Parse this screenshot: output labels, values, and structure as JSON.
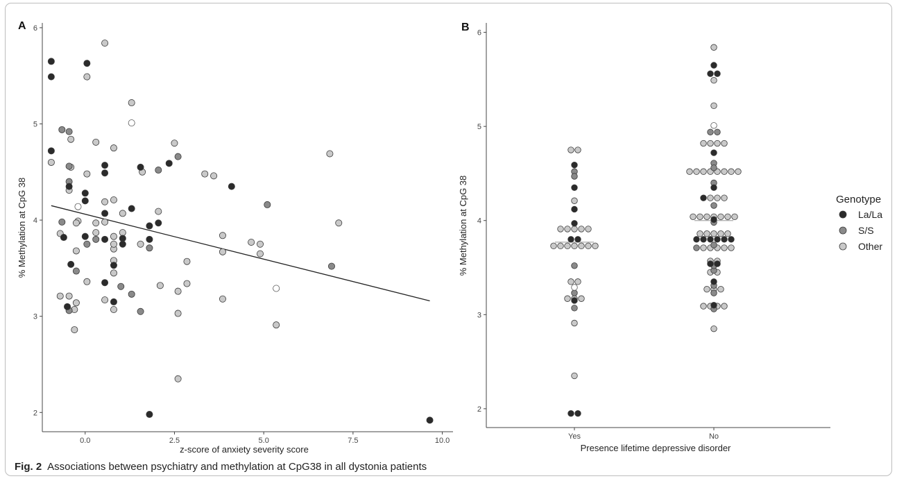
{
  "caption": {
    "label": "Fig. 2",
    "text": "Associations between psychiatry and methylation at CpG38 in all dystonia patients"
  },
  "colors": {
    "La/La": "#2b2b2b",
    "S/S": "#8a8a8a",
    "Other": "#c9c9c9",
    "regression_line": "#222222",
    "median_line": "#aaaaaa"
  },
  "legend": {
    "title": "Genotype",
    "items": [
      "La/La",
      "S/S",
      "Other"
    ]
  },
  "chart_data": [
    {
      "panel": "A",
      "type": "scatter",
      "xlabel": "z-score of anxiety severity score",
      "ylabel": "% Methylation at CpG 38",
      "xlim": [
        -1.2,
        10.3
      ],
      "ylim": [
        1.8,
        6.05
      ],
      "xticks": [
        "0.0",
        "2.5",
        "5.0",
        "7.5",
        "10.0"
      ],
      "xtick_values": [
        0,
        2.5,
        5,
        7.5,
        10
      ],
      "yticks": [
        "2",
        "3",
        "4",
        "5",
        "6"
      ],
      "ytick_values": [
        2,
        3,
        4,
        5,
        6
      ],
      "regression_line": {
        "x": [
          -0.95,
          9.65
        ],
        "y": [
          4.15,
          3.16
        ]
      },
      "series": [
        {
          "name": "La/La",
          "points": [
            [
              -0.95,
              5.65
            ],
            [
              -0.95,
              5.49
            ],
            [
              -0.95,
              4.72
            ],
            [
              0.05,
              5.63
            ],
            [
              -0.45,
              4.35
            ],
            [
              0,
              4.28
            ],
            [
              0,
              4.2
            ],
            [
              -0.6,
              3.82
            ],
            [
              0,
              3.83
            ],
            [
              0.55,
              4.57
            ],
            [
              0.55,
              4.49
            ],
            [
              0.55,
              4.07
            ],
            [
              0.55,
              3.8
            ],
            [
              0.55,
              3.35
            ],
            [
              -0.4,
              3.54
            ],
            [
              -0.5,
              3.1
            ],
            [
              0.8,
              3.53
            ],
            [
              0.8,
              3.15
            ],
            [
              1.05,
              3.81
            ],
            [
              1.05,
              3.75
            ],
            [
              1.3,
              4.12
            ],
            [
              1.55,
              4.55
            ],
            [
              1.8,
              3.94
            ],
            [
              1.8,
              3.8
            ],
            [
              2.05,
              3.97
            ],
            [
              2.35,
              4.59
            ],
            [
              4.1,
              4.35
            ],
            [
              1.8,
              1.98
            ],
            [
              9.65,
              1.92
            ]
          ]
        },
        {
          "name": "S/S",
          "points": [
            [
              -0.65,
              4.94
            ],
            [
              -0.45,
              4.92
            ],
            [
              -0.45,
              4.56
            ],
            [
              -0.45,
              4.4
            ],
            [
              -0.65,
              3.98
            ],
            [
              -0.25,
              3.47
            ],
            [
              -0.45,
              3.06
            ],
            [
              0.05,
              3.75
            ],
            [
              0.3,
              3.8
            ],
            [
              1.0,
              3.31
            ],
            [
              1.3,
              3.23
            ],
            [
              1.55,
              3.05
            ],
            [
              1.8,
              3.71
            ],
            [
              2.05,
              4.52
            ],
            [
              2.6,
              4.66
            ],
            [
              5.1,
              4.16
            ],
            [
              6.9,
              3.52
            ]
          ]
        },
        {
          "name": "Other",
          "points": [
            [
              0.55,
              5.84
            ],
            [
              0.05,
              5.49
            ],
            [
              1.3,
              5.22
            ],
            [
              -0.95,
              4.6
            ],
            [
              -0.4,
              4.84
            ],
            [
              -0.45,
              4.31
            ],
            [
              0.3,
              4.81
            ],
            [
              0.8,
              4.75
            ],
            [
              0.05,
              4.48
            ],
            [
              -0.4,
              4.55
            ],
            [
              0.55,
              4.19
            ],
            [
              0.8,
              4.21
            ],
            [
              1.05,
              4.07
            ],
            [
              2.05,
              4.09
            ],
            [
              2.5,
              4.8
            ],
            [
              1.6,
              4.5
            ],
            [
              3.35,
              4.48
            ],
            [
              3.6,
              4.46
            ],
            [
              6.85,
              4.69
            ],
            [
              0.3,
              3.97
            ],
            [
              -0.2,
              3.99
            ],
            [
              -0.25,
              3.97
            ],
            [
              0.3,
              3.87
            ],
            [
              0.55,
              3.98
            ],
            [
              0.8,
              3.83
            ],
            [
              0.8,
              3.7
            ],
            [
              0.8,
              3.75
            ],
            [
              0.8,
              3.58
            ],
            [
              0.8,
              3.45
            ],
            [
              1.05,
              3.87
            ],
            [
              -0.7,
              3.86
            ],
            [
              -0.25,
              3.68
            ],
            [
              0.05,
              3.36
            ],
            [
              -0.7,
              3.21
            ],
            [
              -0.45,
              3.21
            ],
            [
              -0.25,
              3.14
            ],
            [
              -0.3,
              3.07
            ],
            [
              -0.3,
              2.86
            ],
            [
              0.55,
              3.17
            ],
            [
              0.8,
              3.07
            ],
            [
              1.55,
              3.75
            ],
            [
              2.1,
              3.32
            ],
            [
              2.6,
              3.26
            ],
            [
              2.6,
              3.03
            ],
            [
              2.85,
              3.57
            ],
            [
              2.85,
              3.34
            ],
            [
              3.85,
              3.84
            ],
            [
              3.85,
              3.67
            ],
            [
              3.85,
              3.18
            ],
            [
              4.65,
              3.77
            ],
            [
              4.9,
              3.75
            ],
            [
              4.9,
              3.65
            ],
            [
              5.35,
              2.91
            ],
            [
              7.1,
              3.97
            ],
            [
              2.6,
              2.35
            ]
          ]
        },
        {
          "name": "",
          "open": true,
          "points": [
            [
              1.3,
              5.01
            ],
            [
              -0.2,
              4.14
            ],
            [
              5.35,
              3.29
            ]
          ]
        }
      ]
    },
    {
      "panel": "B",
      "type": "scatter",
      "xlabel": "Presence lifetime depressive disorder",
      "ylabel": "% Methylation at CpG 38",
      "categories": [
        "Yes",
        "No"
      ],
      "ylim": [
        1.8,
        6.1
      ],
      "yticks": [
        "2",
        "3",
        "4",
        "5",
        "6"
      ],
      "ytick_values": [
        2,
        3,
        4,
        5,
        6
      ],
      "medians": [
        3.77,
        4.0
      ],
      "series": [
        {
          "name": "La/La",
          "points": [
            [
              "Yes",
              4.59
            ],
            [
              "Yes",
              4.35
            ],
            [
              "Yes",
              4.12
            ],
            [
              "Yes",
              3.97
            ],
            [
              "Yes",
              3.8
            ],
            [
              "Yes",
              3.8
            ],
            [
              "Yes",
              3.15
            ],
            [
              "Yes",
              1.95
            ],
            [
              "Yes",
              1.95
            ],
            [
              "No",
              5.65
            ],
            [
              "No",
              5.56
            ],
            [
              "No",
              5.56
            ],
            [
              "No",
              4.72
            ],
            [
              "No",
              4.35
            ],
            [
              "No",
              4.24
            ],
            [
              "No",
              4.01
            ],
            [
              "No",
              3.8
            ],
            [
              "No",
              3.8
            ],
            [
              "No",
              3.8
            ],
            [
              "No",
              3.8
            ],
            [
              "No",
              3.8
            ],
            [
              "No",
              3.8
            ],
            [
              "No",
              3.54
            ],
            [
              "No",
              3.54
            ],
            [
              "No",
              3.35
            ],
            [
              "No",
              3.1
            ]
          ]
        },
        {
          "name": "S/S",
          "points": [
            [
              "Yes",
              4.52
            ],
            [
              "Yes",
              4.47
            ],
            [
              "Yes",
              3.52
            ],
            [
              "Yes",
              3.23
            ],
            [
              "Yes",
              3.07
            ],
            [
              "No",
              4.94
            ],
            [
              "No",
              4.94
            ],
            [
              "No",
              4.61
            ],
            [
              "No",
              4.56
            ],
            [
              "No",
              4.4
            ],
            [
              "No",
              3.98
            ],
            [
              "No",
              3.74
            ],
            [
              "No",
              3.71
            ],
            [
              "No",
              3.47
            ],
            [
              "No",
              3.31
            ],
            [
              "No",
              3.23
            ],
            [
              "No",
              3.06
            ],
            [
              "No",
              4.16
            ],
            [
              "No",
              3.52
            ]
          ]
        },
        {
          "name": "Other",
          "points": [
            [
              "Yes",
              4.75
            ],
            [
              "Yes",
              4.75
            ],
            [
              "Yes",
              4.21
            ],
            [
              "Yes",
              3.91
            ],
            [
              "Yes",
              3.91
            ],
            [
              "Yes",
              3.91
            ],
            [
              "Yes",
              3.91
            ],
            [
              "Yes",
              3.91
            ],
            [
              "Yes",
              3.73
            ],
            [
              "Yes",
              3.73
            ],
            [
              "Yes",
              3.73
            ],
            [
              "Yes",
              3.73
            ],
            [
              "Yes",
              3.73
            ],
            [
              "Yes",
              3.73
            ],
            [
              "Yes",
              3.73
            ],
            [
              "Yes",
              3.35
            ],
            [
              "Yes",
              3.35
            ],
            [
              "Yes",
              3.17
            ],
            [
              "Yes",
              3.17
            ],
            [
              "Yes",
              3.17
            ],
            [
              "Yes",
              2.91
            ],
            [
              "Yes",
              2.35
            ],
            [
              "No",
              5.84
            ],
            [
              "No",
              5.49
            ],
            [
              "No",
              5.22
            ],
            [
              "No",
              4.82
            ],
            [
              "No",
              4.82
            ],
            [
              "No",
              4.82
            ],
            [
              "No",
              4.82
            ],
            [
              "No",
              4.52
            ],
            [
              "No",
              4.52
            ],
            [
              "No",
              4.52
            ],
            [
              "No",
              4.52
            ],
            [
              "No",
              4.52
            ],
            [
              "No",
              4.52
            ],
            [
              "No",
              4.52
            ],
            [
              "No",
              4.52
            ],
            [
              "No",
              4.24
            ],
            [
              "No",
              4.24
            ],
            [
              "No",
              4.24
            ],
            [
              "No",
              4.04
            ],
            [
              "No",
              4.04
            ],
            [
              "No",
              4.04
            ],
            [
              "No",
              4.04
            ],
            [
              "No",
              4.04
            ],
            [
              "No",
              4.04
            ],
            [
              "No",
              4.04
            ],
            [
              "No",
              3.86
            ],
            [
              "No",
              3.86
            ],
            [
              "No",
              3.86
            ],
            [
              "No",
              3.86
            ],
            [
              "No",
              3.86
            ],
            [
              "No",
              3.71
            ],
            [
              "No",
              3.71
            ],
            [
              "No",
              3.71
            ],
            [
              "No",
              3.71
            ],
            [
              "No",
              3.71
            ],
            [
              "No",
              3.57
            ],
            [
              "No",
              3.57
            ],
            [
              "No",
              3.45
            ],
            [
              "No",
              3.45
            ],
            [
              "No",
              3.27
            ],
            [
              "No",
              3.27
            ],
            [
              "No",
              3.27
            ],
            [
              "No",
              3.09
            ],
            [
              "No",
              3.09
            ],
            [
              "No",
              3.09
            ],
            [
              "No",
              3.09
            ],
            [
              "No",
              2.85
            ]
          ]
        },
        {
          "name": "",
          "open": true,
          "points": [
            [
              "Yes",
              3.29
            ],
            [
              "No",
              5.01
            ]
          ]
        }
      ]
    }
  ]
}
